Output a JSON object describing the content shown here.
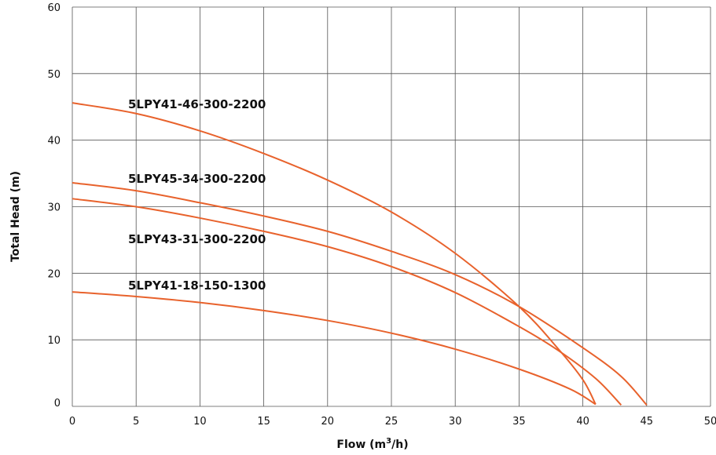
{
  "chart_data": {
    "type": "line",
    "title": "",
    "xlabel": "Flow (m",
    "xlabel_sup": "3",
    "xlabel_end": "/h)",
    "ylabel": "Total Head (m)",
    "xlim": [
      0,
      50
    ],
    "ylim": [
      0,
      60
    ],
    "xticks": [
      0,
      5,
      10,
      15,
      20,
      25,
      30,
      35,
      40,
      45,
      50
    ],
    "yticks": [
      0,
      10,
      20,
      30,
      40,
      50,
      60
    ],
    "grid": true,
    "line_color": "#e8622c",
    "series": [
      {
        "name": "5LPY41-46-300-2200",
        "x": [
          0,
          5,
          10,
          15,
          20,
          25,
          30,
          35,
          38,
          40,
          41
        ],
        "y": [
          45.6,
          44.0,
          41.4,
          38.0,
          34.0,
          29.2,
          23.0,
          15.0,
          8.8,
          4.0,
          0.3
        ]
      },
      {
        "name": "5LPY45-34-300-2200",
        "x": [
          0,
          5,
          10,
          15,
          20,
          25,
          30,
          35,
          40,
          43,
          45
        ],
        "y": [
          33.6,
          32.4,
          30.6,
          28.6,
          26.3,
          23.3,
          19.8,
          15.0,
          8.8,
          4.5,
          0.2
        ]
      },
      {
        "name": "5LPY43-31-300-2200",
        "x": [
          0,
          5,
          10,
          15,
          20,
          25,
          30,
          35,
          38,
          41,
          43
        ],
        "y": [
          31.2,
          30.0,
          28.3,
          26.3,
          24.0,
          21.0,
          17.1,
          12.0,
          8.5,
          4.2,
          0.2
        ]
      },
      {
        "name": "5LPY41-18-150-1300",
        "x": [
          0,
          5,
          10,
          15,
          20,
          25,
          30,
          35,
          39,
          41
        ],
        "y": [
          17.2,
          16.5,
          15.6,
          14.4,
          12.9,
          11.0,
          8.6,
          5.6,
          2.6,
          0.3
        ]
      }
    ]
  }
}
